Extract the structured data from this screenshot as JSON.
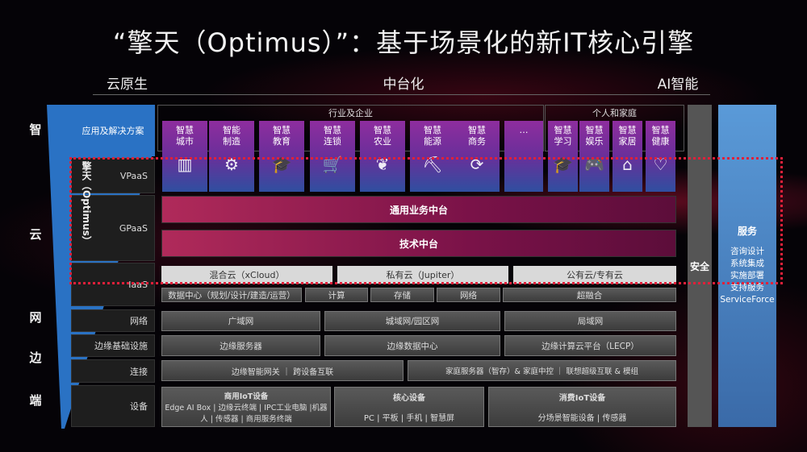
{
  "title": "“擎天（Optimus）”：基于场景化的新IT核心引擎",
  "columns": [
    "云原生",
    "中台化",
    "AI智能"
  ],
  "side": [
    "智",
    "云",
    "网",
    "边",
    "端"
  ],
  "apps_label": "应用及解决方案",
  "optimus_label": "擎天（Optimus）",
  "rows": {
    "vpaas": "VPaaS",
    "gpaas": "GPaaS",
    "iaas": "IaaS",
    "network": "网络",
    "edge": "边缘基础设施",
    "connect": "连接",
    "device": "设备"
  },
  "industry": {
    "label": "行业及企业",
    "tiles": [
      {
        "l1": "智慧",
        "l2": "城市",
        "icon": "city-icon",
        "g": "▥"
      },
      {
        "l1": "智能",
        "l2": "制造",
        "icon": "brain-gear-icon",
        "g": "⚙"
      },
      {
        "l1": "智慧",
        "l2": "教育",
        "icon": "graduation-cap-icon",
        "g": "🎓"
      },
      {
        "l1": "智慧",
        "l2": "连锁",
        "icon": "shopping-cart-icon",
        "g": "🛒"
      },
      {
        "l1": "智慧",
        "l2": "农业",
        "icon": "plant-icon",
        "g": "❦"
      },
      {
        "l1": "智慧",
        "l2": "能源",
        "icon": "mine-cart-icon",
        "g": "⛏"
      },
      {
        "l1": "智慧",
        "l2": "商务",
        "icon": "business-icon",
        "g": "⟳"
      },
      {
        "l1": "…",
        "l2": "",
        "icon": "",
        "g": ""
      }
    ]
  },
  "personal": {
    "label": "个人和家庭",
    "tiles": [
      {
        "l1": "智慧",
        "l2": "学习",
        "icon": "learning-icon",
        "g": "🎓"
      },
      {
        "l1": "智慧",
        "l2": "娱乐",
        "icon": "gamepad-icon",
        "g": "🎮"
      },
      {
        "l1": "智慧",
        "l2": "家居",
        "icon": "smart-home-icon",
        "g": "⌂"
      },
      {
        "l1": "智慧",
        "l2": "健康",
        "icon": "heart-icon",
        "g": "♡"
      }
    ]
  },
  "gpaas": [
    "通用业务中台",
    "技术中台"
  ],
  "iaas": [
    "混合云（xCloud）",
    "私有云（Jupiter）",
    "公有云/专有云"
  ],
  "infra": [
    "数据中心（规划/设计/建造/运营）",
    "计算",
    "存储",
    "网络",
    "超融合"
  ],
  "network": [
    "广域网",
    "城域网/园区网",
    "局域网"
  ],
  "edge": [
    "边缘服务器",
    "边缘数据中心",
    "边缘计算云平台（LECP）"
  ],
  "connect": [
    "边缘智能网关 ｜ 跨设备互联",
    "家庭服务器（智存）& 家庭中控 ｜ 联想超级互联 & 模组"
  ],
  "devices": [
    {
      "title": "商用IoT设备",
      "body": "Edge AI Box | 边缘云终端 | IPC工业电脑 |机器人 | 传感器 | 商用服务终端"
    },
    {
      "title": "核心设备",
      "body": "PC | 平板 | 手机 | 智慧屏"
    },
    {
      "title": "消费IoT设备",
      "body": "分场景智能设备 | 传感器"
    }
  ],
  "security": "安全",
  "service": {
    "title": "服务",
    "items": [
      "咨询设计",
      "系统集成",
      "实施部署",
      "支持服务",
      "ServiceForce"
    ]
  },
  "colors": {
    "accent_blue": "#2a72c4",
    "tile_purple": "#8e2d9e",
    "gpaas_red": "#b02a5a",
    "dotted": "#e0203a"
  }
}
